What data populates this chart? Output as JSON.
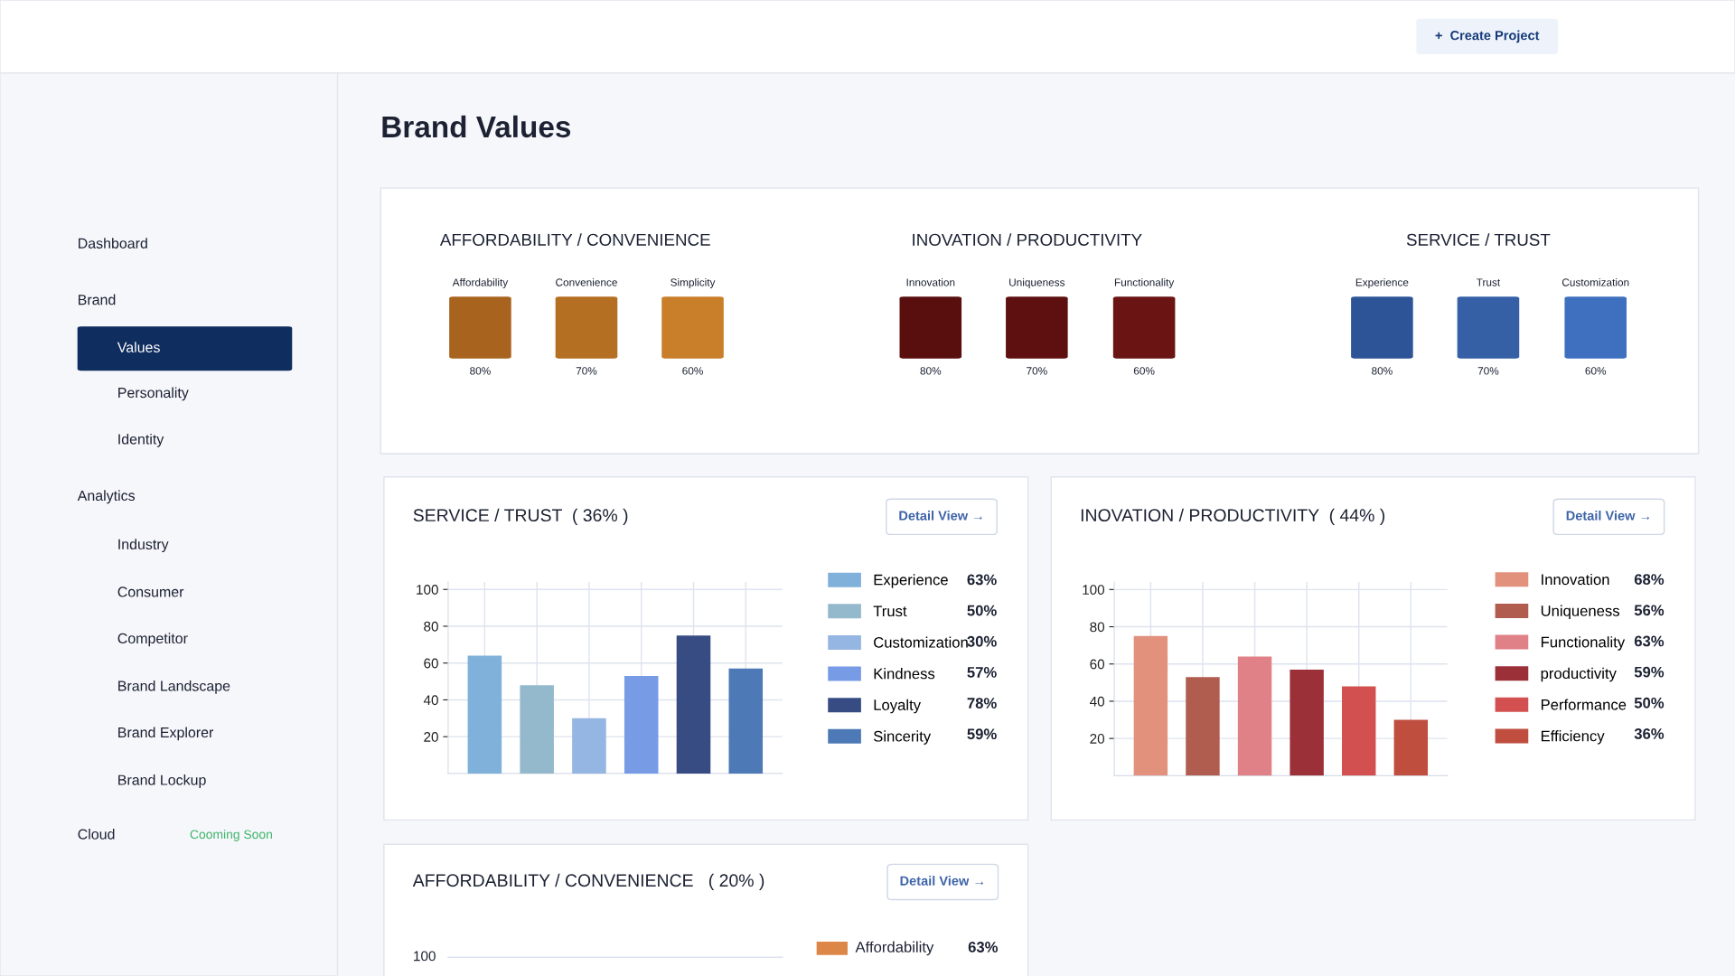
{
  "chart_data": [
    {
      "type": "other",
      "title": "Brand Values",
      "categories": [
        "Affordability",
        "Convenience",
        "Simplicity",
        "Innovation",
        "Uniqueness",
        "Functionality",
        "Experience",
        "Trust",
        "Customization"
      ],
      "value_labels": [
        "80%",
        "70%",
        "60%",
        "80%",
        "70%",
        "60%",
        "80%",
        "70%",
        "60%"
      ],
      "annotations": [
        "AFFORDABILITY / CONVENIENCE",
        "INOVATION / PRODUCTIVITY",
        "SERVICE / TRUST"
      ]
    },
    {
      "type": "bar",
      "title": "SERVICE / TRUST  ( 36% )",
      "categories": [
        null,
        null,
        null,
        null,
        null,
        null
      ],
      "series": [
        {
          "name": "Experience",
          "color": "#80b1da",
          "values": [
            64,
            null,
            null,
            null,
            null,
            null
          ]
        },
        {
          "name": "Trust",
          "color": "#95b9cc",
          "values": [
            null,
            48,
            null,
            null,
            null,
            null
          ]
        },
        {
          "name": "Customization",
          "color": "#95b5e2",
          "values": [
            null,
            null,
            30,
            null,
            null,
            null
          ]
        },
        {
          "name": "Kindness",
          "color": "#789be6",
          "values": [
            null,
            null,
            null,
            53,
            null,
            null
          ]
        },
        {
          "name": "Loyalty",
          "color": "#374c82",
          "values": [
            null,
            null,
            null,
            null,
            75,
            null
          ]
        },
        {
          "name": "Sincerity",
          "color": "#4d7ab6",
          "values": [
            null,
            null,
            null,
            null,
            null,
            57
          ]
        }
      ],
      "ylim": [
        0,
        104
      ],
      "yticks": [
        20,
        40,
        60,
        80,
        100
      ],
      "grid": true,
      "legend": "right",
      "annotations": [
        "Detail View →",
        "63%",
        "50%",
        "30%",
        "57%",
        "78%",
        "59%"
      ]
    },
    {
      "type": "bar",
      "title": "INOVATION / PRODUCTIVITY  ( 44% )",
      "categories": [
        null,
        null,
        null,
        null,
        null,
        null
      ],
      "series": [
        {
          "name": "Innovation",
          "color": "#e2917d",
          "values": [
            75,
            null,
            null,
            null,
            null,
            null
          ]
        },
        {
          "name": "Uniqueness",
          "color": "#b05c4e",
          "values": [
            null,
            53,
            null,
            null,
            null,
            null
          ]
        },
        {
          "name": "Functionality",
          "color": "#df8186",
          "values": [
            null,
            null,
            64,
            null,
            null,
            null
          ]
        },
        {
          "name": "productivity",
          "color": "#9b3038",
          "values": [
            null,
            null,
            null,
            57,
            null,
            null
          ]
        },
        {
          "name": "Performance",
          "color": "#d35050",
          "values": [
            null,
            null,
            null,
            null,
            48,
            null
          ]
        },
        {
          "name": "Efficiency",
          "color": "#bf4e3e",
          "values": [
            null,
            null,
            null,
            null,
            null,
            30
          ]
        }
      ],
      "ylim": [
        0,
        104
      ],
      "yticks": [
        20,
        40,
        60,
        80,
        100
      ],
      "grid": true,
      "legend": "right",
      "annotations": [
        "Detail View →",
        "68%",
        "56%",
        "63%",
        "59%",
        "50%",
        "36%"
      ]
    },
    {
      "type": "other",
      "title": "AFFORDABILITY / CONVENIENCE   ( 20% )",
      "categories": [
        "Affordability"
      ],
      "value_labels": [
        "63%"
      ],
      "annotations": [
        "Detail View →",
        "100"
      ]
    },
    {
      "type": "other",
      "categories": [
        "Dashboard",
        "Brand",
        "Values",
        "Personality",
        "Identity",
        "Analytics",
        "Industry",
        "Consumer",
        "Competitor",
        "Brand Landscape",
        "Brand Explorer",
        "Brand Lockup",
        "Cloud"
      ],
      "annotations": [
        "Cooming Soon",
        "+  Create Project"
      ]
    }
  ]
}
